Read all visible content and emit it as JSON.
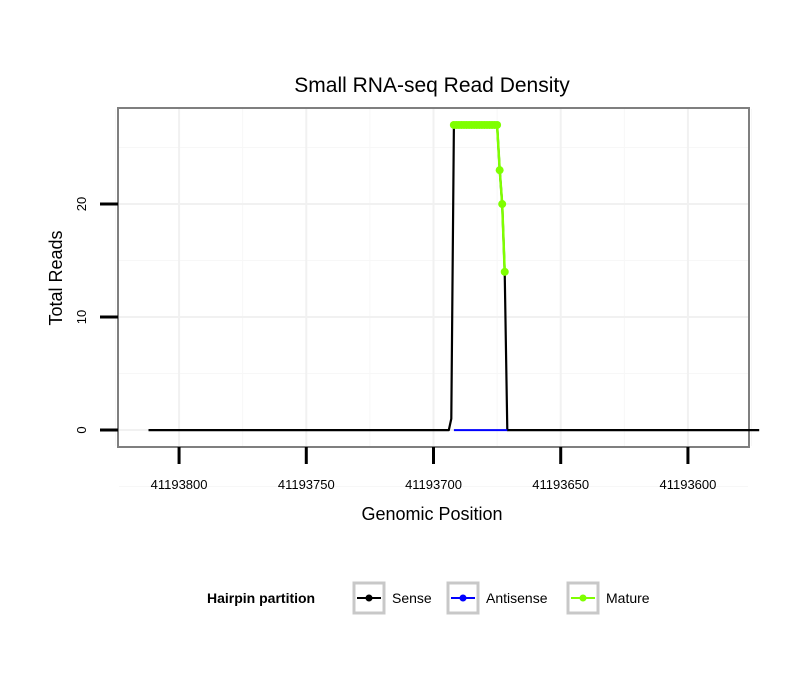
{
  "chart_data": {
    "type": "line",
    "title": "Small RNA-seq Read Density",
    "xlabel": "Genomic Position",
    "ylabel": "Total Reads",
    "x_reversed": true,
    "xlim": [
      41193824,
      41193576
    ],
    "ylim": [
      -1.5,
      28.5
    ],
    "x_ticks": [
      41193800,
      41193750,
      41193700,
      41193650,
      41193600
    ],
    "x_tick_labels": [
      "41193800",
      "41193750",
      "41193700",
      "41193650",
      "41193600"
    ],
    "y_ticks": [
      0,
      10,
      20
    ],
    "y_tick_labels": [
      "0",
      "10",
      "20"
    ],
    "grid": true,
    "legend": {
      "title": "Hairpin partition",
      "position": "bottom",
      "entries": [
        {
          "label": "Sense",
          "color": "#000000"
        },
        {
          "label": "Antisense",
          "color": "#0000ff"
        },
        {
          "label": "Mature",
          "color": "#7fff00"
        }
      ]
    },
    "series": [
      {
        "name": "Sense",
        "color": "#000000",
        "x": [
          41193812,
          41193700,
          41193694,
          41193693,
          41193692,
          41193675,
          41193674,
          41193673,
          41193672,
          41193671,
          41193671,
          41193572
        ],
        "y": [
          0,
          0,
          0,
          1,
          27,
          27,
          23,
          20,
          14,
          0,
          0,
          0
        ]
      },
      {
        "name": "Antisense",
        "color": "#0000ff",
        "x": [
          41193692,
          41193671
        ],
        "y": [
          0,
          0
        ]
      },
      {
        "name": "Mature",
        "color": "#7fff00",
        "x": [
          41193692,
          41193691,
          41193690,
          41193689,
          41193688,
          41193687,
          41193686,
          41193685,
          41193684,
          41193683,
          41193682,
          41193681,
          41193680,
          41193679,
          41193678,
          41193677,
          41193676,
          41193675,
          41193674,
          41193673,
          41193672
        ],
        "y": [
          27,
          27,
          27,
          27,
          27,
          27,
          27,
          27,
          27,
          27,
          27,
          27,
          27,
          27,
          27,
          27,
          27,
          27,
          23,
          20,
          14
        ]
      }
    ]
  }
}
